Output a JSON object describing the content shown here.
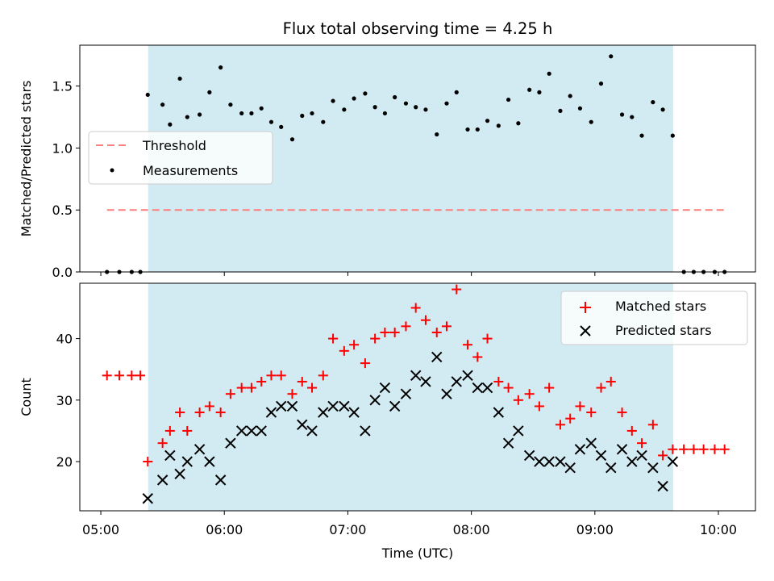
{
  "chart_data": {
    "type": "scatter",
    "title": "Flux total observing time = 4.25 h",
    "xlabel": "Time (UTC)",
    "x_ticks": [
      "05:00",
      "06:00",
      "07:00",
      "08:00",
      "09:00",
      "10:00"
    ],
    "xlim_hours": [
      4.83,
      10.3
    ],
    "observing_window": {
      "start": "05:23",
      "end": "09:38",
      "color": "#add8e6"
    },
    "x_hours": [
      5.05,
      5.15,
      5.25,
      5.32,
      5.38,
      5.5,
      5.56,
      5.64,
      5.7,
      5.8,
      5.88,
      5.97,
      6.05,
      6.14,
      6.22,
      6.3,
      6.38,
      6.46,
      6.55,
      6.63,
      6.71,
      6.8,
      6.88,
      6.97,
      7.05,
      7.14,
      7.22,
      7.3,
      7.38,
      7.47,
      7.55,
      7.63,
      7.72,
      7.8,
      7.88,
      7.97,
      8.05,
      8.13,
      8.22,
      8.3,
      8.38,
      8.47,
      8.55,
      8.63,
      8.72,
      8.8,
      8.88,
      8.97,
      9.05,
      9.13,
      9.22,
      9.3,
      9.38,
      9.47,
      9.55,
      9.63,
      9.72,
      9.8,
      9.88,
      9.97,
      10.05
    ],
    "panels": [
      {
        "ylabel": "Matched/Predicted stars",
        "ylim": [
          0,
          1.83
        ],
        "y_ticks": [
          "0.0",
          "0.5",
          "1.0",
          "1.5"
        ],
        "threshold": {
          "name": "Threshold",
          "value": 0.5,
          "color": "#ff7f7f"
        },
        "legend_position": "center-left",
        "series": [
          {
            "name": "Measurements",
            "marker": "dot",
            "color": "#000000",
            "values": [
              0,
              0,
              0,
              0,
              1.43,
              1.35,
              1.19,
              1.56,
              1.25,
              1.27,
              1.45,
              1.65,
              1.35,
              1.28,
              1.28,
              1.32,
              1.21,
              1.17,
              1.07,
              1.26,
              1.28,
              1.21,
              1.38,
              1.31,
              1.4,
              1.44,
              1.33,
              1.28,
              1.41,
              1.36,
              1.33,
              1.31,
              1.11,
              1.36,
              1.45,
              1.15,
              1.15,
              1.22,
              1.18,
              1.39,
              1.2,
              1.47,
              1.45,
              1.6,
              1.3,
              1.42,
              1.32,
              1.21,
              1.52,
              1.74,
              1.27,
              1.25,
              1.1,
              1.37,
              1.31,
              1.1,
              0,
              0,
              0,
              0,
              0
            ]
          }
        ]
      },
      {
        "ylabel": "Count",
        "ylim": [
          12,
          49
        ],
        "y_ticks": [
          "20",
          "30",
          "40"
        ],
        "legend_position": "upper-right",
        "series": [
          {
            "name": "Matched stars",
            "marker": "plus",
            "color": "#ff0000",
            "values": [
              34,
              34,
              34,
              34,
              20,
              23,
              25,
              28,
              25,
              28,
              29,
              28,
              31,
              32,
              32,
              33,
              34,
              34,
              31,
              33,
              32,
              34,
              40,
              38,
              39,
              36,
              40,
              41,
              41,
              42,
              45,
              43,
              41,
              42,
              48,
              39,
              37,
              40,
              33,
              32,
              30,
              31,
              29,
              32,
              26,
              27,
              29,
              28,
              32,
              33,
              28,
              25,
              23,
              26,
              21,
              22,
              22,
              22,
              22,
              22,
              22
            ]
          },
          {
            "name": "Predicted stars",
            "marker": "x",
            "color": "#000000",
            "values": [
              null,
              null,
              null,
              null,
              14,
              17,
              21,
              18,
              20,
              22,
              20,
              17,
              23,
              25,
              25,
              25,
              28,
              29,
              29,
              26,
              25,
              28,
              29,
              29,
              28,
              25,
              30,
              32,
              29,
              31,
              34,
              33,
              37,
              31,
              33,
              34,
              32,
              32,
              28,
              23,
              25,
              21,
              20,
              20,
              20,
              19,
              22,
              23,
              21,
              19,
              22,
              20,
              21,
              19,
              16,
              20,
              null,
              null,
              null,
              null,
              null
            ]
          }
        ]
      }
    ]
  }
}
